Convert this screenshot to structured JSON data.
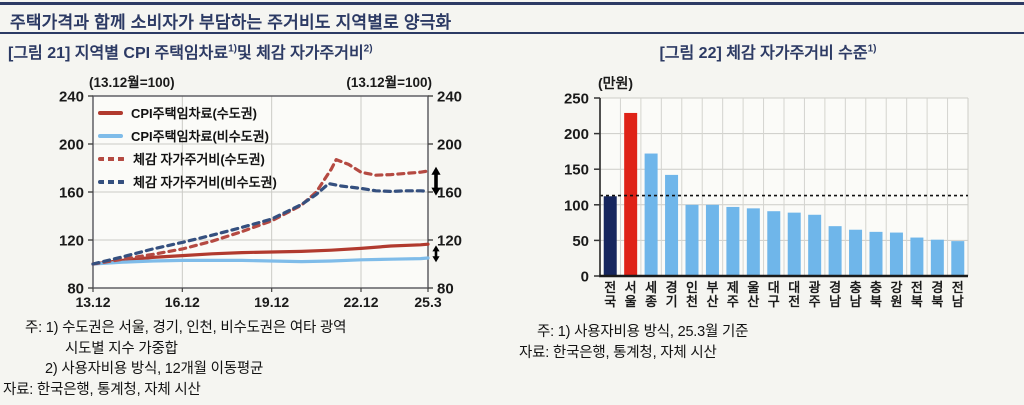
{
  "header": {
    "title": "주택가격과 함께 소비자가 부담하는 주거비도 지역별로 양극화"
  },
  "fig21": {
    "title": "[그림 21] 지역별 CPI 주택임차료",
    "title_sup1": "1)",
    "title_mid": "및 체감 자가주거비",
    "title_sup2": "2)",
    "axis_note_left": "(13.12월=100)",
    "axis_note_right": "(13.12월=100)",
    "notes": [
      "주: 1) 수도권은 서울, 경기, 인천, 비수도권은 여타 광역",
      "시도별 지수 가중합",
      "2) 사용자비용 방식, 12개월 이동평균",
      "자료: 한국은행, 통계청, 자체 시산"
    ]
  },
  "fig22": {
    "title": "[그림 22] 체감 자가주거비 수준",
    "title_sup1": "1)",
    "unit_label": "(만원)",
    "notes": [
      "주: 1) 사용자비용 방식, 25.3월 기준",
      "자료: 한국은행, 통계청, 자체 시산"
    ]
  },
  "chart_data": [
    {
      "type": "line",
      "figure": "그림 21",
      "title": "지역별 CPI 주택임차료 및 체감 자가주거비",
      "index_base": "13.12월=100",
      "x_axis": {
        "tick_labels": [
          "13.12",
          "16.12",
          "19.12",
          "22.12",
          "25.3"
        ],
        "tick_months": [
          0,
          36,
          72,
          108,
          135
        ],
        "gridline_months": [
          36,
          72,
          108
        ],
        "range_months": [
          0,
          135
        ]
      },
      "y_axis": {
        "min": 80,
        "max": 240,
        "ticks": [
          80,
          120,
          160,
          200,
          240
        ],
        "gridline_ticks": [
          120,
          160,
          200
        ]
      },
      "grid": true,
      "legend_position": "top-left-inside",
      "series": [
        {
          "name": "CPI주택임차료(수도권)",
          "style": "solid",
          "color": "#b13a2e",
          "points_xy": [
            [
              0,
              100
            ],
            [
              12,
              103
            ],
            [
              24,
              105.5
            ],
            [
              36,
              107
            ],
            [
              48,
              108.5
            ],
            [
              60,
              109.5
            ],
            [
              72,
              110
            ],
            [
              84,
              110.5
            ],
            [
              96,
              111.5
            ],
            [
              108,
              113
            ],
            [
              120,
              115
            ],
            [
              132,
              116
            ],
            [
              135,
              116.5
            ]
          ]
        },
        {
          "name": "CPI주택임차료(비수도권)",
          "style": "solid",
          "color": "#7fbce9",
          "points_xy": [
            [
              0,
              100
            ],
            [
              12,
              101.5
            ],
            [
              24,
              102.5
            ],
            [
              36,
              103
            ],
            [
              48,
              103
            ],
            [
              60,
              103
            ],
            [
              72,
              102.5
            ],
            [
              84,
              102
            ],
            [
              96,
              102.5
            ],
            [
              108,
              103.5
            ],
            [
              120,
              104
            ],
            [
              132,
              104.5
            ],
            [
              135,
              105
            ]
          ]
        },
        {
          "name": "체감 자가주거비(수도권)",
          "style": "dashed",
          "color": "#b54a42",
          "points_xy": [
            [
              0,
              100
            ],
            [
              12,
              104
            ],
            [
              24,
              108
            ],
            [
              36,
              112.5
            ],
            [
              48,
              119
            ],
            [
              60,
              127
            ],
            [
              72,
              136
            ],
            [
              84,
              149
            ],
            [
              90,
              160
            ],
            [
              96,
              179
            ],
            [
              98,
              187
            ],
            [
              103,
              183
            ],
            [
              108,
              176.5
            ],
            [
              114,
              174
            ],
            [
              120,
              174.5
            ],
            [
              126,
              175.5
            ],
            [
              132,
              176.5
            ],
            [
              135,
              177.5
            ]
          ]
        },
        {
          "name": "체감 자가주거비(비수도권)",
          "style": "dashed",
          "color": "#35507f",
          "points_xy": [
            [
              0,
              100
            ],
            [
              12,
              106
            ],
            [
              24,
              112.5
            ],
            [
              36,
              118
            ],
            [
              48,
              124
            ],
            [
              60,
              130.5
            ],
            [
              72,
              137.5
            ],
            [
              84,
              149.5
            ],
            [
              90,
              158
            ],
            [
              95,
              167
            ],
            [
              100,
              165
            ],
            [
              108,
              163
            ],
            [
              114,
              161
            ],
            [
              120,
              160.5
            ],
            [
              126,
              161
            ],
            [
              132,
              161
            ],
            [
              135,
              160.5
            ]
          ]
        }
      ],
      "gap_arrows": [
        {
          "x_month": 135,
          "from": 157,
          "to": 181
        },
        {
          "x_month": 135,
          "from": 101.5,
          "to": 115.5
        }
      ]
    },
    {
      "type": "bar",
      "figure": "그림 22",
      "title": "체감 자가주거비 수준",
      "unit": "만원",
      "categories": [
        "전국",
        "서울",
        "세종",
        "경기",
        "인천",
        "부산",
        "제주",
        "울산",
        "대구",
        "대전",
        "광주",
        "경남",
        "충남",
        "충북",
        "강원",
        "전북",
        "경북",
        "전남"
      ],
      "values": [
        112,
        229,
        172,
        142,
        100,
        100,
        97,
        95,
        91,
        89,
        86,
        70,
        65,
        62,
        61,
        54,
        51,
        49
      ],
      "bar_colors": {
        "전국": "#16265e",
        "서울": "#df2318",
        "default": "#6fb6ea"
      },
      "reference_line": {
        "value": 113,
        "style": "dotted",
        "color": "#111111",
        "meaning": "전국 수준"
      },
      "y_axis": {
        "min": 0,
        "max": 250,
        "ticks": [
          0,
          50,
          100,
          150,
          200,
          250
        ]
      },
      "grid": true,
      "legend_position": "none"
    }
  ]
}
